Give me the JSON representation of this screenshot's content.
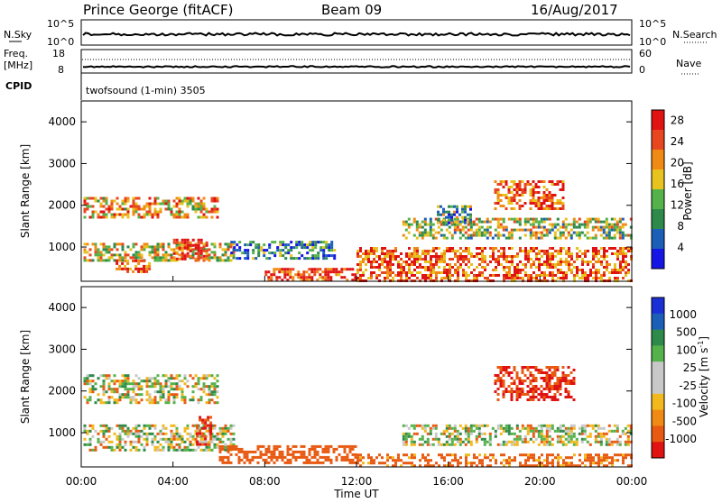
{
  "header": {
    "station": "Prince George (fitACF)",
    "beam": "Beam 09",
    "date": "16/Aug/2017"
  },
  "nsky_panel": {
    "left_label": "N.Sky",
    "left_top": "10^5",
    "left_bottom": "10^0",
    "right_label": "N.Search",
    "right_top": "10^5",
    "right_bottom": "10^0"
  },
  "freq_panel": {
    "left_label_1": "Freq.",
    "left_label_2": "[MHz]",
    "left_top": "18",
    "left_bottom": "8",
    "right_label": "Nave",
    "right_top": "60",
    "right_bottom": "0"
  },
  "cpid": {
    "label": "CPID",
    "text": "twofsound (1-min) 3505"
  },
  "colors": {
    "power": [
      "#1515e6",
      "#1c5fb8",
      "#2e8a4a",
      "#55b24a",
      "#e8c21e",
      "#f08a14",
      "#e8461e",
      "#e01212"
    ],
    "velocity": [
      "#e01212",
      "#e85a12",
      "#f08a14",
      "#f2b81e",
      "#c8c8c8",
      "#c8c8c8",
      "#55b24a",
      "#2e8a4a",
      "#1c5fb8",
      "#1a2fd6"
    ]
  },
  "chart_data": [
    {
      "type": "heatmap",
      "title": "",
      "quantity": "Power",
      "xlabel": "",
      "ylabel": "Slant Range [km]",
      "x_ticks": [
        "00:00",
        "04:00",
        "08:00",
        "12:00",
        "16:00",
        "20:00",
        "00:00"
      ],
      "y_ticks": [
        "1000",
        "2000",
        "3000",
        "4000"
      ],
      "xlim_hours": [
        0,
        24
      ],
      "ylim_km": [
        180,
        4500
      ],
      "colorbar": {
        "label": "Power [dB]",
        "ticks": [
          "4",
          "8",
          "12",
          "16",
          "20",
          "24",
          "28"
        ],
        "range": [
          0,
          30
        ]
      },
      "regions": [
        {
          "x_hours": [
            0.1,
            6.0
          ],
          "range_km": [
            1700,
            2200
          ],
          "level": 0.65
        },
        {
          "x_hours": [
            0.1,
            6.6
          ],
          "range_km": [
            700,
            1100
          ],
          "level": 0.55
        },
        {
          "x_hours": [
            1.5,
            3.0
          ],
          "range_km": [
            400,
            700
          ],
          "level": 0.85
        },
        {
          "x_hours": [
            4.0,
            5.5
          ],
          "range_km": [
            700,
            1200
          ],
          "level": 0.9
        },
        {
          "x_hours": [
            6.5,
            11.0
          ],
          "range_km": [
            750,
            1150
          ],
          "level": 0.25
        },
        {
          "x_hours": [
            8.0,
            12.0
          ],
          "range_km": [
            200,
            500
          ],
          "level": 0.9
        },
        {
          "x_hours": [
            12.0,
            24.0
          ],
          "range_km": [
            200,
            1000
          ],
          "level": 0.8
        },
        {
          "x_hours": [
            14.0,
            24.0
          ],
          "range_km": [
            1200,
            1700
          ],
          "level": 0.5
        },
        {
          "x_hours": [
            15.5,
            17.0
          ],
          "range_km": [
            1600,
            2000
          ],
          "level": 0.35
        },
        {
          "x_hours": [
            18.0,
            21.0
          ],
          "range_km": [
            1900,
            2600
          ],
          "level": 0.8
        }
      ]
    },
    {
      "type": "heatmap",
      "title": "",
      "quantity": "Velocity",
      "xlabel": "Time UT",
      "ylabel": "Slant Range [km]",
      "x_ticks": [
        "00:00",
        "04:00",
        "08:00",
        "12:00",
        "16:00",
        "20:00",
        "00:00"
      ],
      "y_ticks": [
        "1000",
        "2000",
        "3000",
        "4000"
      ],
      "xlim_hours": [
        0,
        24
      ],
      "ylim_km": [
        180,
        4500
      ],
      "colorbar": {
        "label": "Velocity [m s^-1]",
        "ticks": [
          "1000",
          "500",
          "100",
          "25",
          "-25",
          "-100",
          "-500",
          "-1000"
        ]
      },
      "regions": [
        {
          "x_hours": [
            0.1,
            6.0
          ],
          "range_km": [
            1700,
            2400
          ],
          "velocity_ms": 0
        },
        {
          "x_hours": [
            0.1,
            6.6
          ],
          "range_km": [
            600,
            1200
          ],
          "velocity_ms": 0
        },
        {
          "x_hours": [
            5.0,
            5.7
          ],
          "range_km": [
            700,
            1400
          ],
          "velocity_ms": -500
        },
        {
          "x_hours": [
            6.0,
            12.0
          ],
          "range_km": [
            300,
            700
          ],
          "velocity_ms": -300
        },
        {
          "x_hours": [
            12.0,
            24.0
          ],
          "range_km": [
            200,
            500
          ],
          "velocity_ms": -200
        },
        {
          "x_hours": [
            14.0,
            24.0
          ],
          "range_km": [
            700,
            1200
          ],
          "velocity_ms": 0
        },
        {
          "x_hours": [
            18.0,
            21.5
          ],
          "range_km": [
            1800,
            2600
          ],
          "velocity_ms": -500
        }
      ]
    }
  ]
}
